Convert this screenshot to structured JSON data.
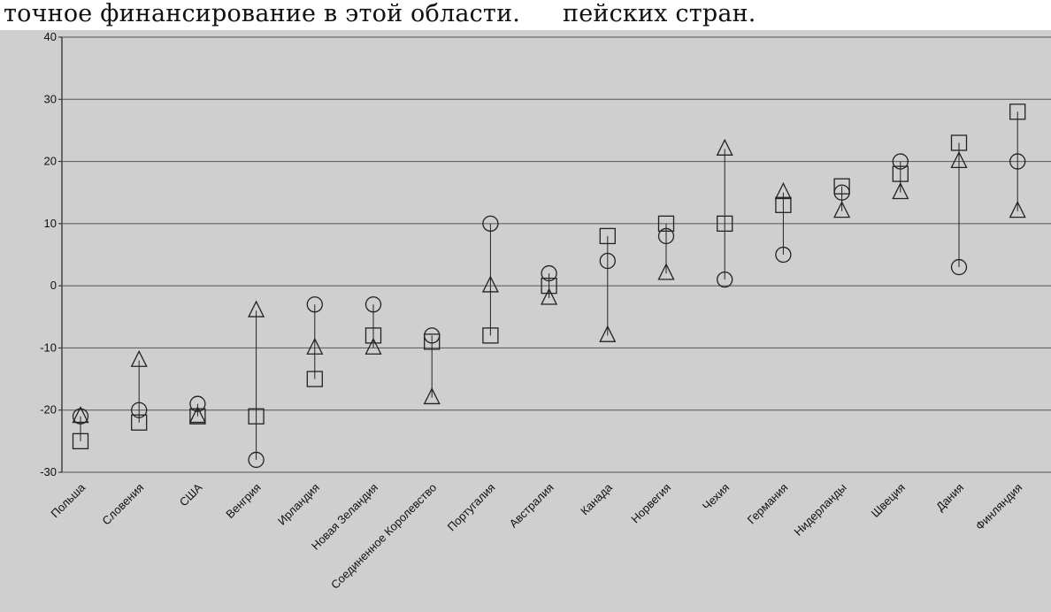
{
  "header": {
    "left": "точное финансирование в этой области.",
    "right": "пейских стран."
  },
  "chart_data": {
    "type": "scatter",
    "title": "",
    "xlabel": "",
    "ylabel": "",
    "ylim": [
      -30,
      40
    ],
    "yticks": [
      40,
      30,
      20,
      10,
      0,
      -10,
      -20,
      -30
    ],
    "grid": true,
    "categories": [
      "Польша",
      "Словения",
      "США",
      "Венгрия",
      "Ирландия",
      "Новая Зеландия",
      "Соединенное Королевство",
      "Португалия",
      "Австралия",
      "Канада",
      "Норвегия",
      "Чехия",
      "Германия",
      "Нидерланды",
      "Швеция",
      "Дания",
      "Финляндия"
    ],
    "series": [
      {
        "name": "circle",
        "marker": "circle",
        "values": [
          -21,
          -20,
          -19,
          -28,
          -3,
          -3,
          -8,
          10,
          2,
          4,
          8,
          1,
          5,
          15,
          20,
          3,
          20
        ]
      },
      {
        "name": "square",
        "marker": "square",
        "values": [
          -25,
          -22,
          -21,
          -21,
          -15,
          -8,
          -9,
          -8,
          0,
          8,
          10,
          10,
          13,
          16,
          18,
          23,
          28
        ]
      },
      {
        "name": "triangle",
        "marker": "triangle",
        "values": [
          -21,
          -12,
          -21,
          -4,
          -10,
          -10,
          -18,
          0,
          -2,
          -8,
          2,
          22,
          15,
          12,
          15,
          20,
          12
        ]
      }
    ]
  }
}
